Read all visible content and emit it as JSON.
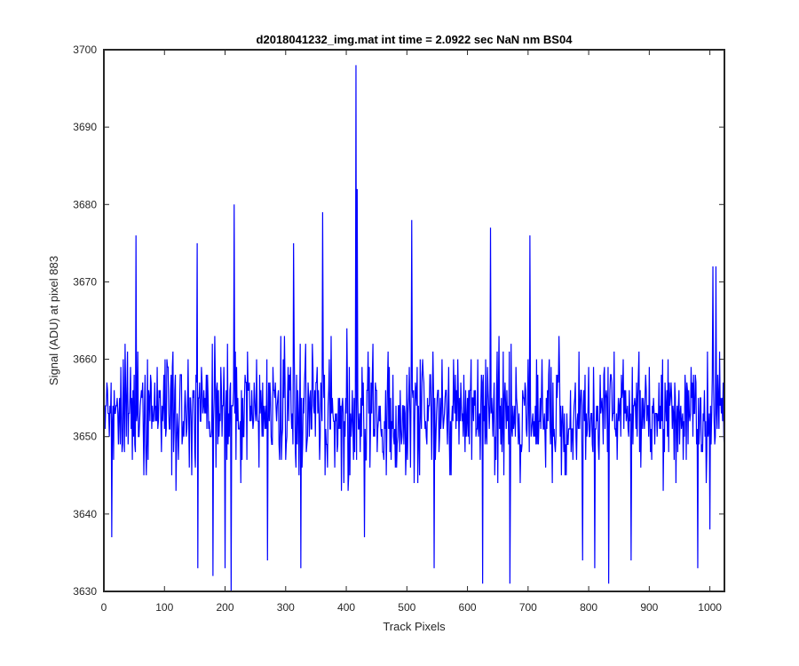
{
  "chart_data": {
    "type": "line",
    "title": "d2018041232_img.mat int time = 2.0922 sec  NaN nm BS04",
    "xlabel": "Track Pixels",
    "ylabel": "Signal (ADU) at pixel 883",
    "xlim": [
      0,
      1024
    ],
    "ylim": [
      3630,
      3700
    ],
    "xticks": [
      "0",
      "100",
      "200",
      "300",
      "400",
      "500",
      "600",
      "700",
      "800",
      "900",
      "1000"
    ],
    "yticks": [
      "3630",
      "3640",
      "3650",
      "3660",
      "3670",
      "3680",
      "3690",
      "3700"
    ],
    "grid": false,
    "legend": "none",
    "series": [
      {
        "color": "#0000ff",
        "x_start": 1,
        "x_step": 1,
        "points_count": 1024,
        "mean": 3653,
        "typical_min": 3642,
        "typical_max": 3664,
        "peaks": [
          {
            "x": 53,
            "y": 3676
          },
          {
            "x": 154,
            "y": 3675
          },
          {
            "x": 215,
            "y": 3680
          },
          {
            "x": 313,
            "y": 3675
          },
          {
            "x": 361,
            "y": 3679
          },
          {
            "x": 416,
            "y": 3698
          },
          {
            "x": 418,
            "y": 3682
          },
          {
            "x": 508,
            "y": 3678
          },
          {
            "x": 638,
            "y": 3677
          },
          {
            "x": 703,
            "y": 3676
          },
          {
            "x": 1005,
            "y": 3672
          },
          {
            "x": 1010,
            "y": 3672
          }
        ],
        "dips": [
          {
            "x": 13,
            "y": 3637
          },
          {
            "x": 155,
            "y": 3633
          },
          {
            "x": 180,
            "y": 3632
          },
          {
            "x": 200,
            "y": 3633
          },
          {
            "x": 210,
            "y": 3630
          },
          {
            "x": 270,
            "y": 3634
          },
          {
            "x": 325,
            "y": 3633
          },
          {
            "x": 430,
            "y": 3637
          },
          {
            "x": 545,
            "y": 3633
          },
          {
            "x": 625,
            "y": 3631
          },
          {
            "x": 670,
            "y": 3631
          },
          {
            "x": 790,
            "y": 3634
          },
          {
            "x": 810,
            "y": 3633
          },
          {
            "x": 833,
            "y": 3631
          },
          {
            "x": 870,
            "y": 3634
          },
          {
            "x": 980,
            "y": 3633
          },
          {
            "x": 1000,
            "y": 3638
          }
        ]
      }
    ]
  }
}
